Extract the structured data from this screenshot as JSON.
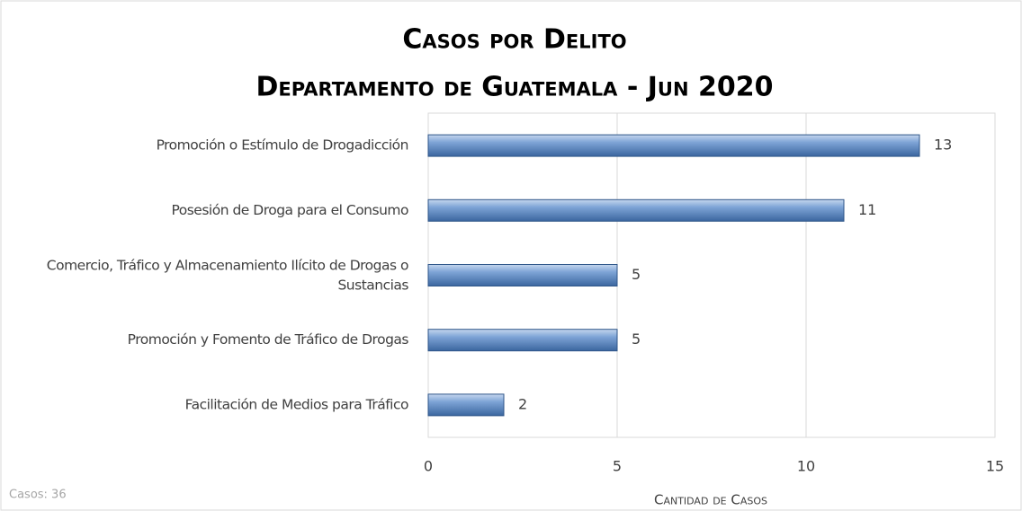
{
  "chart_data": {
    "type": "barh",
    "title": "Casos por Delito",
    "subtitle": "Departamento de Guatemala - Jun 2020",
    "categories": [
      "Promoción o Estímulo de Drogadicción",
      "Posesión de Droga para el Consumo",
      "Comercio, Tráfico y Almacenamiento Ilícito de Drogas o Sustancias",
      "Promoción y Fomento de Tráfico de Drogas",
      "Facilitación de Medios para Tráfico"
    ],
    "values": [
      13,
      11,
      5,
      5,
      2
    ],
    "color": "#4f81bd",
    "xlim": [
      0,
      15
    ],
    "xticks": [
      0,
      5,
      10,
      15
    ],
    "grid": true,
    "xlabel": "Cantidad de Casos",
    "annotation": "Casos: 36"
  }
}
